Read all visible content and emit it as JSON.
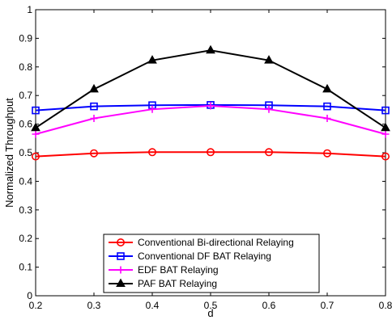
{
  "chart_data": {
    "type": "line",
    "x": [
      0.2,
      0.3,
      0.4,
      0.5,
      0.6,
      0.7,
      0.8
    ],
    "xlabel": "d",
    "ylabel": "Normalized Throughput",
    "xlim": [
      0.2,
      0.8
    ],
    "ylim": [
      0,
      1
    ],
    "xticks": [
      "0.2",
      "0.3",
      "0.4",
      "0.5",
      "0.6",
      "0.7",
      "0.8"
    ],
    "yticks": [
      "0",
      "0.1",
      "0.2",
      "0.3",
      "0.4",
      "0.5",
      "0.6",
      "0.7",
      "0.8",
      "0.9",
      "1"
    ],
    "grid": false,
    "legend_position": "bottom-center",
    "series": [
      {
        "name": "Conventional Bi-directional Relaying",
        "color": "#ff0000",
        "marker": "circle",
        "values": [
          0.487,
          0.498,
          0.502,
          0.502,
          0.502,
          0.498,
          0.487
        ]
      },
      {
        "name": "Conventional DF BAT Relaying",
        "color": "#0000ff",
        "marker": "square",
        "values": [
          0.648,
          0.662,
          0.666,
          0.667,
          0.666,
          0.662,
          0.648
        ]
      },
      {
        "name": "EDF BAT Relaying",
        "color": "#ff00ff",
        "marker": "plus",
        "values": [
          0.565,
          0.62,
          0.652,
          0.664,
          0.652,
          0.62,
          0.565
        ]
      },
      {
        "name": "PAF BAT Relaying",
        "color": "#000000",
        "marker": "triangle",
        "values": [
          0.587,
          0.722,
          0.823,
          0.858,
          0.823,
          0.722,
          0.587
        ]
      }
    ]
  }
}
